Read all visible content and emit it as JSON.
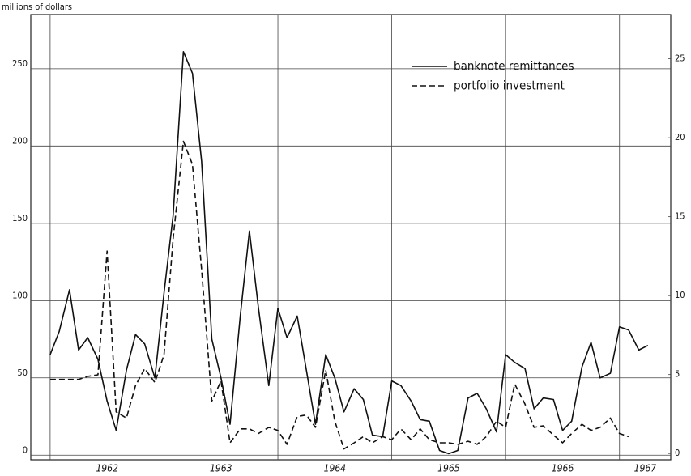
{
  "chart_data": {
    "type": "line",
    "title": "millions of dollars",
    "x": [
      1962,
      1962.08,
      1962.17,
      1962.25,
      1962.33,
      1962.42,
      1962.5,
      1962.58,
      1962.67,
      1962.75,
      1962.83,
      1962.92,
      1963,
      1963.08,
      1963.17,
      1963.25,
      1963.33,
      1963.42,
      1963.5,
      1963.58,
      1963.67,
      1963.75,
      1963.83,
      1963.92,
      1964,
      1964.08,
      1964.17,
      1964.25,
      1964.33,
      1964.42,
      1964.5,
      1964.58,
      1964.67,
      1964.75,
      1964.83,
      1964.92,
      1965,
      1965.08,
      1965.17,
      1965.25,
      1965.33,
      1965.42,
      1965.5,
      1965.58,
      1965.67,
      1965.75,
      1965.83,
      1965.92,
      1966,
      1966.08,
      1966.17,
      1966.25,
      1966.33,
      1966.42,
      1966.5,
      1966.58,
      1966.67,
      1966.75,
      1966.83,
      1966.92,
      1967,
      1967.08,
      1967.17,
      1967.25
    ],
    "series": [
      {
        "name": "banknote remittances",
        "color": "#111111",
        "dash": false,
        "values": [
          65,
          80,
          107,
          68,
          76,
          62,
          35,
          16,
          55,
          78,
          72,
          50,
          105,
          155,
          261,
          247,
          190,
          75,
          50,
          20,
          90,
          145,
          95,
          45,
          95,
          76,
          90,
          55,
          20,
          65,
          50,
          28,
          43,
          36,
          13,
          12,
          48,
          45,
          35,
          23,
          22,
          3,
          1,
          3,
          37,
          40,
          30,
          15,
          65,
          60,
          56,
          30,
          37,
          36,
          16,
          22,
          57,
          73,
          50,
          53,
          83,
          81,
          68,
          71
        ]
      },
      {
        "name": "portfolio investment",
        "color": "#111111",
        "dash": true,
        "values": [
          49,
          49,
          49,
          49,
          51,
          52,
          132,
          28,
          24,
          45,
          56,
          47,
          65,
          140,
          203,
          188,
          120,
          35,
          48,
          8,
          17,
          17,
          14,
          18,
          16,
          7,
          25,
          26,
          18,
          55,
          22,
          4,
          8,
          12,
          8,
          12,
          10,
          17,
          10,
          17,
          10,
          8,
          8,
          7,
          9,
          7,
          12,
          22,
          18,
          46,
          33,
          18,
          19,
          13,
          8,
          14,
          20,
          16,
          18,
          24,
          14,
          12,
          null,
          null
        ]
      }
    ],
    "xlim": [
      1961.83,
      1967.45
    ],
    "xticks": [
      {
        "value": 1962,
        "label": "1962"
      },
      {
        "value": 1963,
        "label": "1963"
      },
      {
        "value": 1964,
        "label": "1964"
      },
      {
        "value": 1965,
        "label": "1965"
      },
      {
        "value": 1966,
        "label": "1966"
      },
      {
        "value": 1967,
        "label": "1967"
      }
    ],
    "ylim": [
      -3,
      285
    ],
    "yticks": [
      0,
      50,
      100,
      150,
      200,
      250
    ],
    "y2lim": [
      -0.4,
      27.8
    ],
    "y2ticks": [
      0,
      5,
      10,
      15,
      20,
      25
    ],
    "grid": true,
    "legend": "top-right"
  }
}
